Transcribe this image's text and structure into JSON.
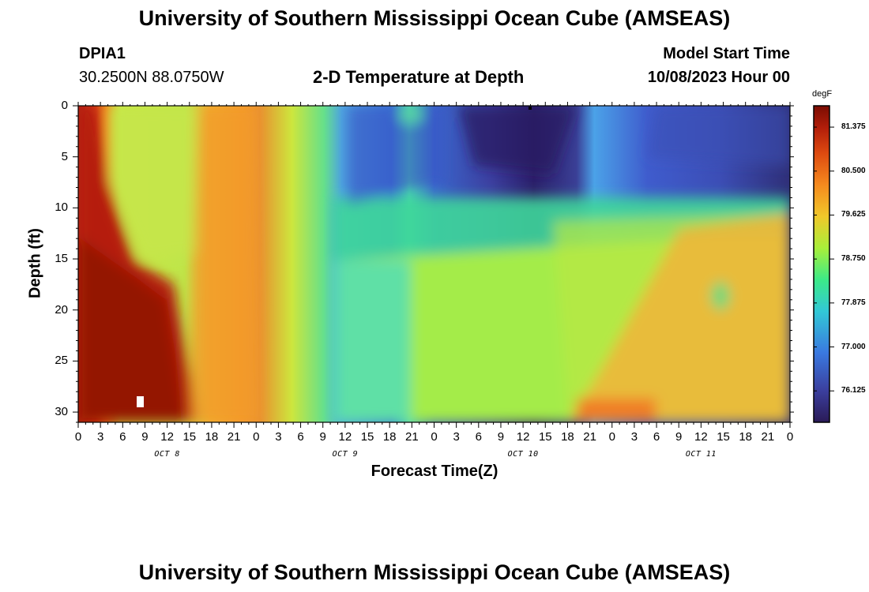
{
  "page": {
    "title": "University of Southern Mississippi Ocean Cube (AMSEAS)",
    "footer_title": "University of Southern Mississippi Ocean Cube (AMSEAS)"
  },
  "header": {
    "station": "DPIA1",
    "coords": "30.2500N  88.0750W",
    "model_start_label": "Model Start Time",
    "model_start_value": "10/08/2023 Hour 00"
  },
  "chart_data": {
    "type": "heatmap",
    "title": "2-D Temperature at Depth",
    "xlabel": "Forecast Time(Z)",
    "ylabel": "Depth (ft)",
    "xlim": [
      0,
      96
    ],
    "ylim": [
      0,
      31
    ],
    "y_inverted": true,
    "x_tick_step_hours": 3,
    "x_tick_labels": [
      "0",
      "3",
      "6",
      "9",
      "12",
      "15",
      "18",
      "21",
      "0",
      "3",
      "6",
      "9",
      "12",
      "15",
      "18",
      "21",
      "0",
      "3",
      "6",
      "9",
      "12",
      "15",
      "18",
      "21",
      "0",
      "3",
      "6",
      "9",
      "12",
      "15",
      "18",
      "21",
      "0"
    ],
    "day_labels": [
      {
        "text": "OCT 8",
        "hour": 12
      },
      {
        "text": "OCT 9",
        "hour": 36
      },
      {
        "text": "OCT 10",
        "hour": 60
      },
      {
        "text": "OCT 11",
        "hour": 84
      }
    ],
    "y_ticks": [
      0,
      5,
      10,
      15,
      20,
      25,
      30
    ],
    "y_tick_labels": [
      "0",
      "5",
      "10",
      "15",
      "20",
      "25",
      "30"
    ],
    "colorbar": {
      "unit": "degF",
      "min": 75.5,
      "max": 81.8,
      "tick_values": [
        81.375,
        80.5,
        79.625,
        78.75,
        77.875,
        77.0,
        76.125
      ],
      "tick_labels": [
        "81.375",
        "80.500",
        "79.625",
        "78.750",
        "77.875",
        "77.000",
        "76.125"
      ]
    },
    "grid": false,
    "legend": "colorbar-right"
  }
}
